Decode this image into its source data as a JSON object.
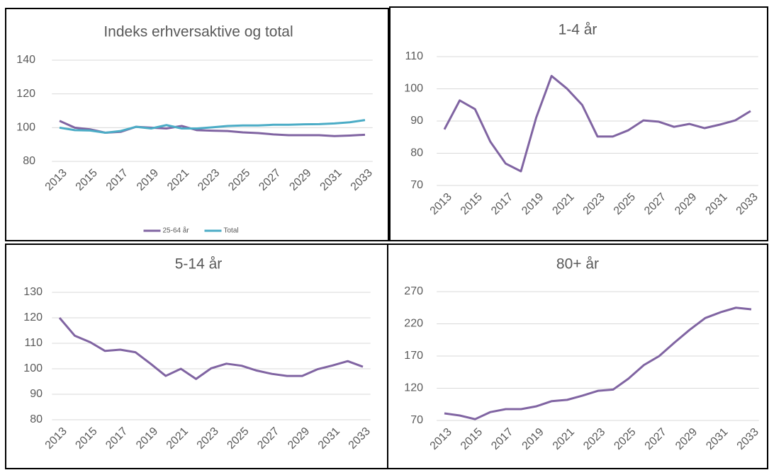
{
  "chart_data": [
    {
      "type": "line",
      "title": "Indeks erhversaktive og total",
      "x": [
        2013,
        2014,
        2015,
        2016,
        2017,
        2018,
        2019,
        2020,
        2021,
        2022,
        2023,
        2024,
        2025,
        2026,
        2027,
        2028,
        2029,
        2030,
        2031,
        2032,
        2033
      ],
      "xlim": [
        2012.5,
        2033.5
      ],
      "xticks": [
        2013,
        2015,
        2017,
        2019,
        2021,
        2023,
        2025,
        2027,
        2029,
        2031,
        2033
      ],
      "ylim": [
        80,
        140
      ],
      "yticks": [
        80,
        100,
        120,
        140
      ],
      "grid": true,
      "legend": "bottom",
      "series": [
        {
          "name": "25-64 år",
          "color": "#8064a2",
          "values": [
            104,
            100,
            99,
            97,
            97.5,
            100.5,
            100,
            99.5,
            101,
            98.5,
            98.2,
            98,
            97.2,
            96.8,
            96,
            95.5,
            95.5,
            95.5,
            95,
            95.3,
            95.8
          ]
        },
        {
          "name": "Total",
          "color": "#4bacc6",
          "values": [
            100,
            98.5,
            98.3,
            97,
            98,
            100.5,
            99.5,
            101.5,
            99.5,
            99.5,
            100.2,
            101,
            101.3,
            101.3,
            101.7,
            101.7,
            102,
            102.1,
            102.5,
            103.2,
            104.5
          ]
        }
      ]
    },
    {
      "type": "line",
      "title": "1-4 år",
      "x": [
        2013,
        2014,
        2015,
        2016,
        2017,
        2018,
        2019,
        2020,
        2021,
        2022,
        2023,
        2024,
        2025,
        2026,
        2027,
        2028,
        2029,
        2030,
        2031,
        2032,
        2033
      ],
      "xlim": [
        2012.5,
        2033.5
      ],
      "xticks": [
        2013,
        2015,
        2017,
        2019,
        2021,
        2023,
        2025,
        2027,
        2029,
        2031,
        2033
      ],
      "ylim": [
        70,
        110
      ],
      "yticks": [
        70,
        80,
        90,
        100,
        110
      ],
      "grid": true,
      "series": [
        {
          "color": "#8064a2",
          "values": [
            87.4,
            96.4,
            93.7,
            83.6,
            76.8,
            74.4,
            91.1,
            104,
            100.1,
            95,
            85.2,
            85.2,
            87.1,
            90.2,
            89.8,
            88.2,
            89.1,
            87.8,
            88.9,
            90.2,
            93.1
          ]
        }
      ]
    },
    {
      "type": "line",
      "title": "5-14 år",
      "x": [
        2013,
        2014,
        2015,
        2016,
        2017,
        2018,
        2019,
        2020,
        2021,
        2022,
        2023,
        2024,
        2025,
        2026,
        2027,
        2028,
        2029,
        2030,
        2031,
        2032,
        2033
      ],
      "xlim": [
        2012.5,
        2033.5
      ],
      "xticks": [
        2013,
        2015,
        2017,
        2019,
        2021,
        2023,
        2025,
        2027,
        2029,
        2031,
        2033
      ],
      "ylim": [
        80,
        130
      ],
      "yticks": [
        80,
        90,
        100,
        110,
        120,
        130
      ],
      "grid": true,
      "series": [
        {
          "color": "#8064a2",
          "values": [
            120,
            113,
            110.5,
            107,
            107.5,
            106.5,
            102,
            97.2,
            100,
            96,
            100.2,
            102,
            101.2,
            99.3,
            98,
            97.2,
            97.2,
            99.8,
            101.3,
            103,
            100.8
          ]
        }
      ]
    },
    {
      "type": "line",
      "title": "80+ år",
      "x": [
        2013,
        2014,
        2015,
        2016,
        2017,
        2018,
        2019,
        2020,
        2021,
        2022,
        2023,
        2024,
        2025,
        2026,
        2027,
        2028,
        2029,
        2030,
        2031,
        2032,
        2033
      ],
      "xlim": [
        2012.5,
        2033.5
      ],
      "xticks": [
        2013,
        2015,
        2017,
        2019,
        2021,
        2023,
        2025,
        2027,
        2029,
        2031,
        2033
      ],
      "ylim": [
        70,
        270
      ],
      "yticks": [
        70,
        120,
        170,
        220,
        270
      ],
      "grid": true,
      "series": [
        {
          "color": "#8064a2",
          "values": [
            81,
            77.7,
            72,
            83,
            87.6,
            87.6,
            92,
            100,
            102,
            108.5,
            116,
            118,
            135,
            156,
            170,
            191,
            211,
            229,
            238,
            245,
            242.5
          ]
        }
      ]
    }
  ]
}
